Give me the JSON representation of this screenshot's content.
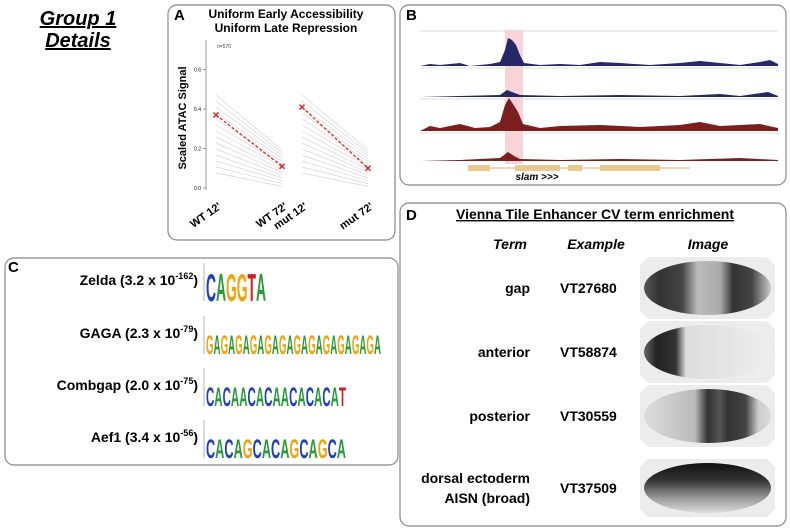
{
  "header": {
    "title_line1": "Group 1",
    "title_line2": "Details"
  },
  "chart_data": {
    "type": "line",
    "panel_label": "A",
    "title_lines": [
      "Uniform Early Accessibility",
      "Uniform Late Repression"
    ],
    "annotation": "n=570",
    "ylabel": "Scaled ATAC Signal",
    "categories": [
      "WT 12'",
      "WT 72'",
      "mut 12'",
      "mut 72'"
    ],
    "series": [
      {
        "color": "#d62728",
        "values": [
          0.37,
          0.11,
          null,
          null
        ]
      },
      {
        "color": "#d62728",
        "values": [
          null,
          null,
          0.41,
          0.1
        ]
      }
    ],
    "ylim": [
      0,
      0.75
    ],
    "yticks": [
      {
        "value": 0,
        "label": "0.0"
      },
      0.2,
      0.4,
      0.6
    ]
  },
  "panel_b": {
    "label": "B",
    "gene": "slam >>>"
  },
  "panel_c": {
    "label": "C",
    "motifs": [
      {
        "name": "Zelda (3.2 x 10",
        "exponent": "-162",
        "close": ")",
        "logo": "CAGGTA"
      },
      {
        "name": "GAGA (2.3 x 10",
        "exponent": "-79",
        "close": ")",
        "logo": "GAGAGAGAGAGAGAGAGAGAGAGA"
      },
      {
        "name": "Combgap (2.0 x 10",
        "exponent": "-75",
        "close": ")",
        "logo": "CACAACACAACACACAT"
      },
      {
        "name": "Aef1 (3.4 x 10",
        "exponent": "-56",
        "close": ")",
        "logo": "CACAGCACAGCAGCA"
      }
    ]
  },
  "panel_d": {
    "label": "D",
    "title": "Vienna Tile Enhancer CV term enrichment",
    "headers": [
      "Term",
      "Example",
      "Image"
    ],
    "rows": [
      {
        "term": [
          "gap"
        ],
        "example": "VT27680"
      },
      {
        "term": [
          "anterior"
        ],
        "example": "VT58874"
      },
      {
        "term": [
          "posterior"
        ],
        "example": "VT30559"
      },
      {
        "term": [
          "dorsal ectoderm",
          "AISN (broad)"
        ],
        "example": "VT37509"
      }
    ]
  }
}
